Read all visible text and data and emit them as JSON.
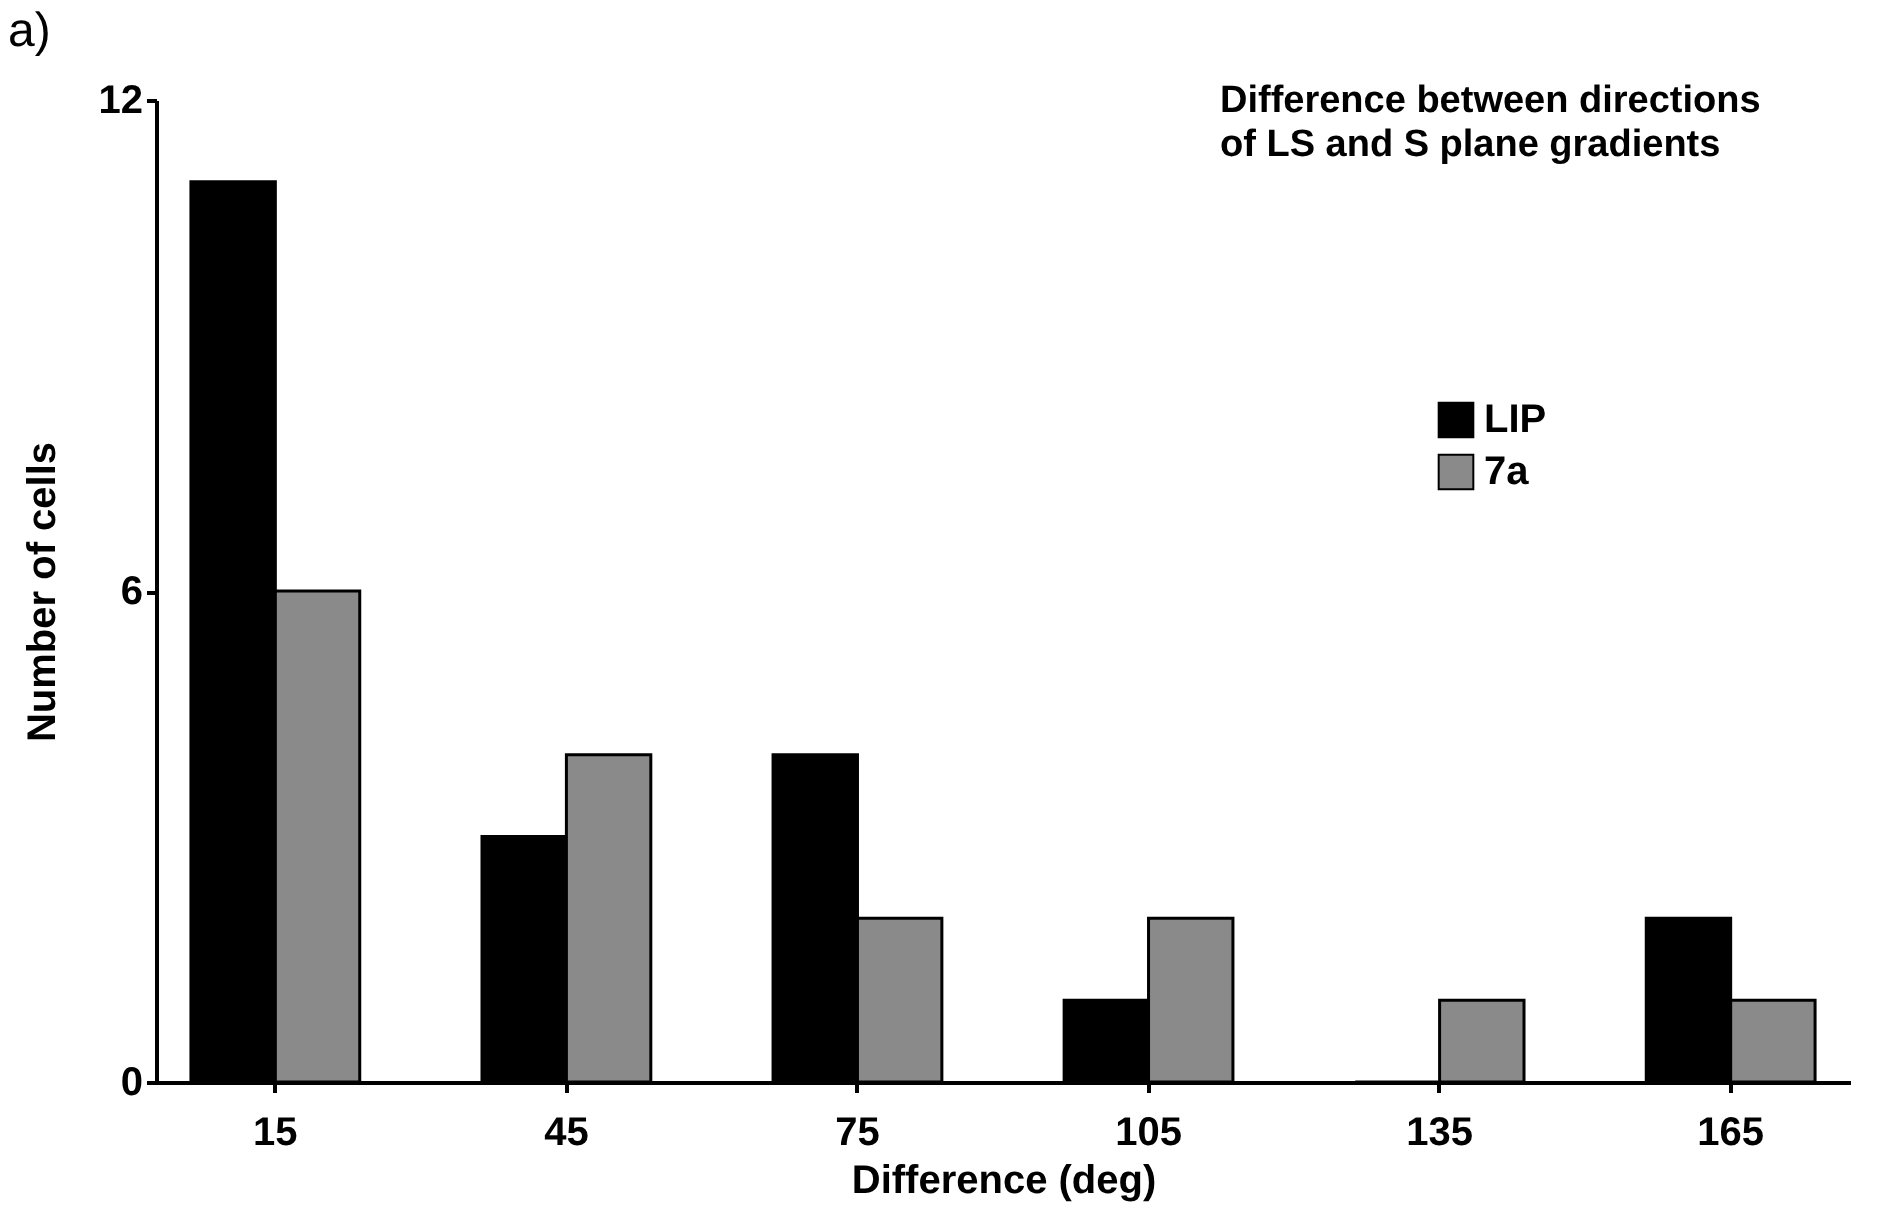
{
  "chart_data": {
    "type": "bar",
    "title": "Difference between directions\nof LS and S plane gradients",
    "xlabel": "Difference  (deg)",
    "ylabel": "Number of cells",
    "annotations": [
      "a)"
    ],
    "categories": [
      "15",
      "45",
      "75",
      "105",
      "135",
      "165"
    ],
    "series": [
      {
        "name": "LIP",
        "color": "#000000",
        "values": [
          11,
          3,
          4,
          1,
          0,
          2
        ]
      },
      {
        "name": "7a",
        "color": "#8a8a8a",
        "values": [
          6,
          4,
          2,
          2,
          1,
          1
        ]
      }
    ],
    "ylim": [
      0,
      12
    ],
    "yticks": [
      0,
      6,
      12
    ],
    "grid": false,
    "legend": "top right"
  }
}
